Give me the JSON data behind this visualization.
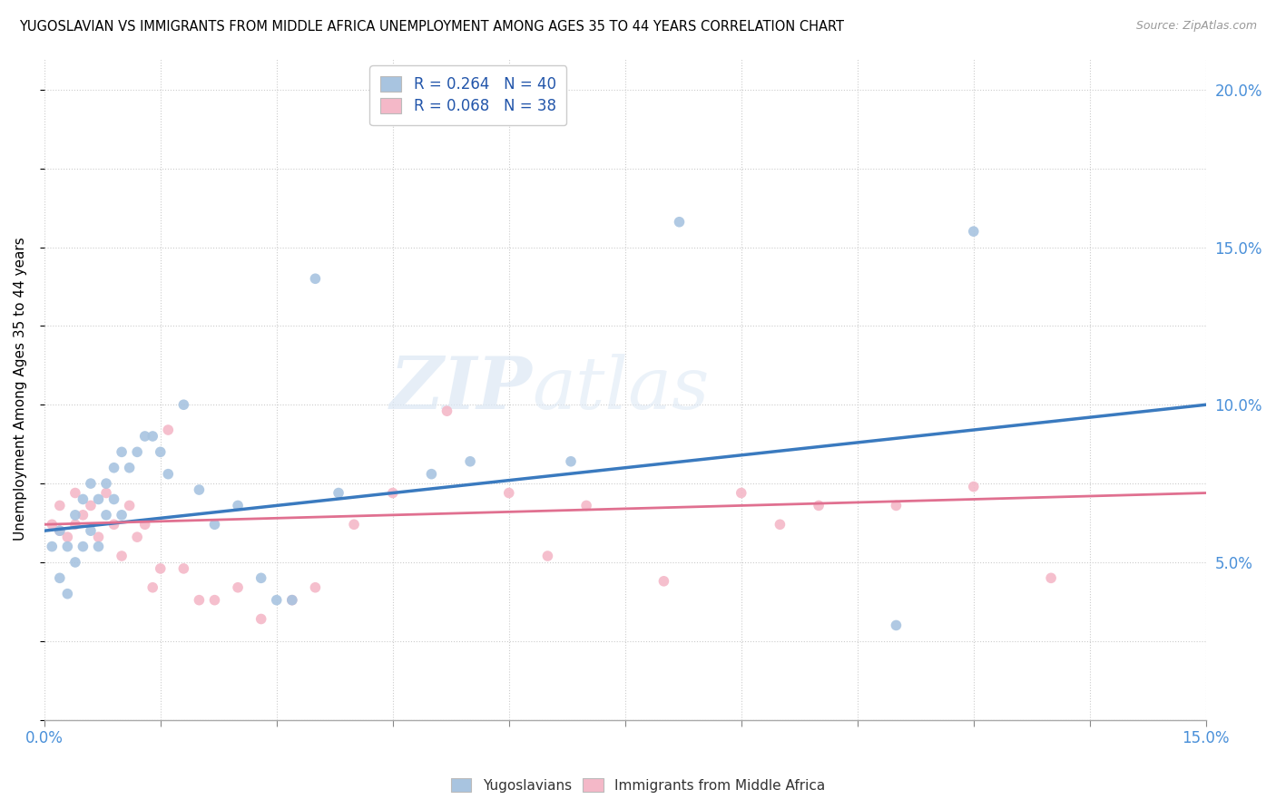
{
  "title": "YUGOSLAVIAN VS IMMIGRANTS FROM MIDDLE AFRICA UNEMPLOYMENT AMONG AGES 35 TO 44 YEARS CORRELATION CHART",
  "source": "Source: ZipAtlas.com",
  "xlabel": "",
  "ylabel": "Unemployment Among Ages 35 to 44 years",
  "xlim": [
    0.0,
    0.15
  ],
  "ylim": [
    0.0,
    0.21
  ],
  "R_blue": 0.264,
  "N_blue": 40,
  "R_pink": 0.068,
  "N_pink": 38,
  "blue_color": "#a8c4e0",
  "pink_color": "#f4b8c8",
  "line_blue": "#3a7abf",
  "line_pink": "#e07090",
  "watermark_color": "#dce8f5",
  "blue_line_start_y": 0.06,
  "blue_line_end_y": 0.1,
  "pink_line_start_y": 0.062,
  "pink_line_end_y": 0.072,
  "blue_scatter_x": [
    0.001,
    0.002,
    0.002,
    0.003,
    0.003,
    0.004,
    0.004,
    0.005,
    0.005,
    0.006,
    0.006,
    0.007,
    0.007,
    0.008,
    0.008,
    0.009,
    0.009,
    0.01,
    0.01,
    0.011,
    0.012,
    0.013,
    0.014,
    0.015,
    0.016,
    0.018,
    0.02,
    0.022,
    0.025,
    0.028,
    0.03,
    0.032,
    0.035,
    0.038,
    0.05,
    0.055,
    0.068,
    0.082,
    0.11,
    0.12
  ],
  "blue_scatter_y": [
    0.055,
    0.045,
    0.06,
    0.04,
    0.055,
    0.05,
    0.065,
    0.055,
    0.07,
    0.06,
    0.075,
    0.055,
    0.07,
    0.065,
    0.075,
    0.07,
    0.08,
    0.065,
    0.085,
    0.08,
    0.085,
    0.09,
    0.09,
    0.085,
    0.078,
    0.1,
    0.073,
    0.062,
    0.068,
    0.045,
    0.038,
    0.038,
    0.14,
    0.072,
    0.078,
    0.082,
    0.082,
    0.158,
    0.03,
    0.155
  ],
  "pink_scatter_x": [
    0.001,
    0.002,
    0.002,
    0.003,
    0.004,
    0.004,
    0.005,
    0.006,
    0.007,
    0.008,
    0.009,
    0.01,
    0.011,
    0.012,
    0.013,
    0.014,
    0.015,
    0.016,
    0.018,
    0.02,
    0.022,
    0.025,
    0.028,
    0.032,
    0.035,
    0.04,
    0.045,
    0.052,
    0.06,
    0.065,
    0.07,
    0.08,
    0.09,
    0.095,
    0.1,
    0.11,
    0.12,
    0.13
  ],
  "pink_scatter_y": [
    0.062,
    0.068,
    0.06,
    0.058,
    0.072,
    0.062,
    0.065,
    0.068,
    0.058,
    0.072,
    0.062,
    0.052,
    0.068,
    0.058,
    0.062,
    0.042,
    0.048,
    0.092,
    0.048,
    0.038,
    0.038,
    0.042,
    0.032,
    0.038,
    0.042,
    0.062,
    0.072,
    0.098,
    0.072,
    0.052,
    0.068,
    0.044,
    0.072,
    0.062,
    0.068,
    0.068,
    0.074,
    0.045
  ]
}
